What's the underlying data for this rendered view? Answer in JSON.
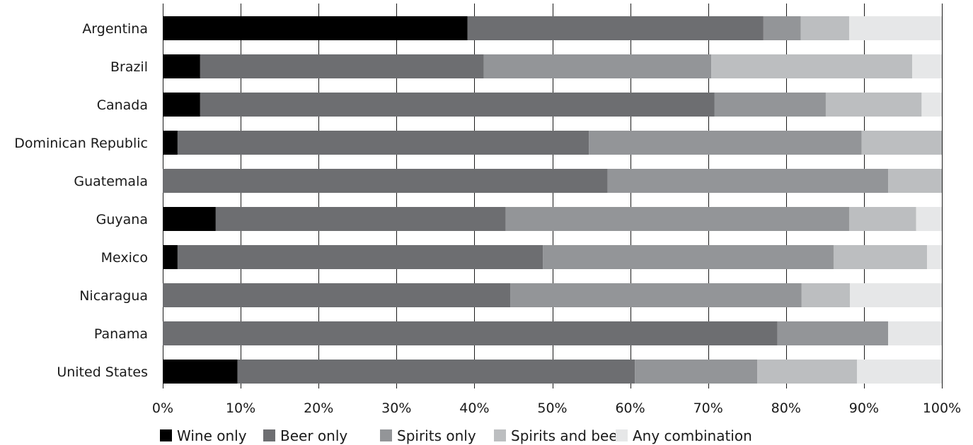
{
  "chart_data": {
    "type": "bar",
    "orientation": "horizontal",
    "stacked": true,
    "title": "",
    "xlabel": "",
    "ylabel": "",
    "xlim": [
      0,
      100
    ],
    "x_ticks": [
      0,
      10,
      20,
      30,
      40,
      50,
      60,
      70,
      80,
      90,
      100
    ],
    "x_tick_labels": [
      "0%",
      "10%",
      "20%",
      "30%",
      "40%",
      "50%",
      "60%",
      "70%",
      "80%",
      "90%",
      "100%"
    ],
    "grid": true,
    "legend_position": "bottom",
    "categories": [
      "Argentina",
      "Brazil",
      "Canada",
      "Dominican Republic",
      "Guatemala",
      "Guyana",
      "Mexico",
      "Nicaragua",
      "Panama",
      "United States"
    ],
    "series": [
      {
        "name": "Wine only",
        "color": "#000000",
        "values": [
          39.1,
          4.8,
          4.8,
          1.9,
          0,
          6.8,
          1.9,
          0,
          0,
          9.6
        ]
      },
      {
        "name": "Beer only",
        "color": "#6d6e71",
        "values": [
          38.0,
          36.4,
          66.0,
          52.8,
          57.1,
          37.2,
          46.9,
          44.6,
          78.9,
          51.0
        ]
      },
      {
        "name": "Spirits only",
        "color": "#939598",
        "values": [
          4.8,
          29.2,
          14.3,
          35.0,
          36.0,
          44.1,
          37.3,
          37.4,
          14.2,
          15.7
        ]
      },
      {
        "name": "Spirits and beer",
        "color": "#bcbec0",
        "values": [
          6.2,
          25.8,
          12.3,
          10.3,
          6.9,
          8.6,
          12.0,
          6.2,
          0,
          12.8
        ]
      },
      {
        "name": "Any combination",
        "color": "#e6e7e8",
        "values": [
          11.9,
          3.8,
          2.6,
          0,
          0,
          3.3,
          1.9,
          11.8,
          6.9,
          10.9
        ]
      }
    ]
  }
}
